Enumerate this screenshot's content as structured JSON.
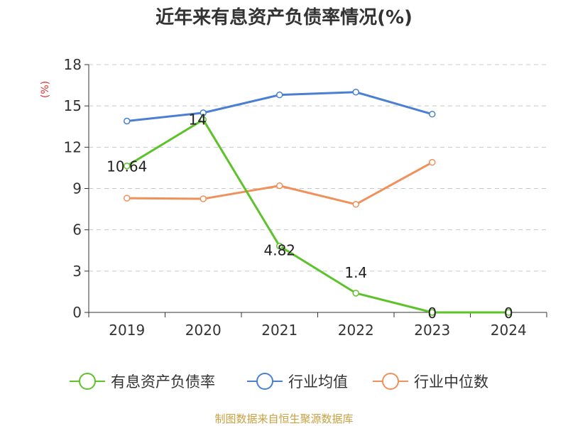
{
  "chart_data": {
    "type": "line",
    "title": "近年来有息资产负债率情况(%)",
    "ylabel": "(%)",
    "xlabel": "",
    "categories": [
      "2019",
      "2020",
      "2021",
      "2022",
      "2023",
      "2024"
    ],
    "ylim": [
      0,
      18
    ],
    "yticks": [
      0,
      3,
      6,
      9,
      12,
      15,
      18
    ],
    "grid": true,
    "legend_position": "bottom",
    "series": [
      {
        "name": "有息资产负债率",
        "color": "#5ec22a",
        "values": [
          10.64,
          14,
          4.82,
          1.4,
          0,
          0
        ],
        "labels": [
          "10.64",
          "14",
          "4.82",
          "1.4",
          "0",
          "0"
        ]
      },
      {
        "name": "行业均值",
        "color": "#4a7fd4",
        "values": [
          13.9,
          14.5,
          15.8,
          16.0,
          14.4,
          null
        ]
      },
      {
        "name": "行业中位数",
        "color": "#f0905a",
        "values": [
          8.3,
          8.25,
          9.2,
          7.85,
          10.9,
          null
        ]
      }
    ],
    "source": "制图数据来自恒生聚源数据库"
  }
}
